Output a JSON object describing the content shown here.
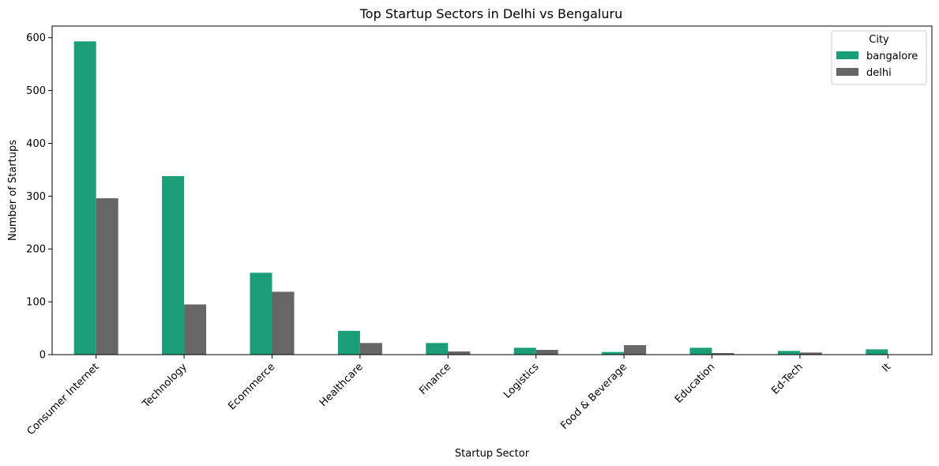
{
  "chart_data": {
    "type": "bar",
    "title": "Top Startup Sectors in Delhi vs Bengaluru",
    "xlabel": "Startup Sector",
    "ylabel": "Number of Startups",
    "categories": [
      "Consumer Internet",
      "Technology",
      "Ecommerce",
      "Healthcare",
      "Finance",
      "Logistics",
      "Food & Beverage",
      "Education",
      "Ed-Tech",
      "It"
    ],
    "series": [
      {
        "name": "bangalore",
        "color": "#1b9e77",
        "values": [
          593,
          338,
          155,
          45,
          22,
          13,
          5,
          13,
          7,
          10
        ]
      },
      {
        "name": "delhi",
        "color": "#666666",
        "values": [
          296,
          95,
          119,
          22,
          6,
          9,
          18,
          3,
          4,
          0
        ]
      }
    ],
    "ylim": [
      0,
      622
    ],
    "yticks": [
      0,
      100,
      200,
      300,
      400,
      500,
      600
    ],
    "legend": {
      "title": "City",
      "placement": "top-right"
    },
    "grid": false
  }
}
